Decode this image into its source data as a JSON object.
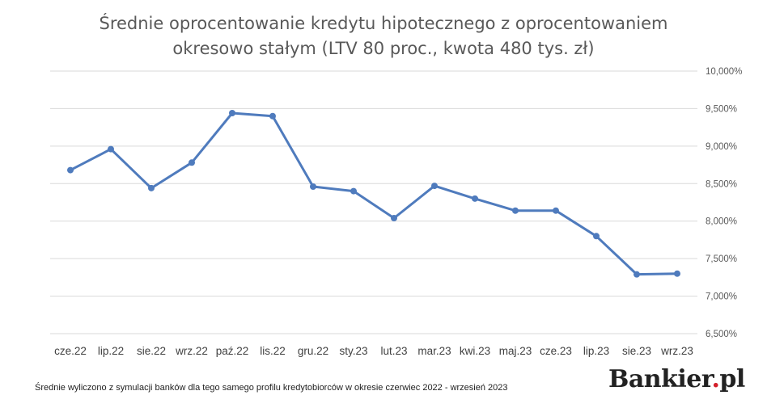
{
  "chart_data": {
    "type": "line",
    "title_line1": "Średnie oprocentowanie kredytu hipotecznego z oprocentowaniem",
    "title_line2": "okresowo stałym (LTV 80 proc., kwota 480 tys. zł)",
    "categories": [
      "cze.22",
      "lip.22",
      "sie.22",
      "wrz.22",
      "paź.22",
      "lis.22",
      "gru.22",
      "sty.23",
      "lut.23",
      "mar.23",
      "kwi.23",
      "maj.23",
      "cze.23",
      "lip.23",
      "sie.23",
      "wrz.23"
    ],
    "series": [
      {
        "values": [
          8.68,
          8.96,
          8.44,
          8.78,
          9.44,
          9.4,
          8.46,
          8.4,
          8.04,
          8.47,
          8.3,
          8.14,
          8.14,
          7.8,
          7.29,
          7.3
        ]
      }
    ],
    "ylim": [
      6.5,
      10.0
    ],
    "yticks": [
      "6,500%",
      "7,000%",
      "7,500%",
      "8,000%",
      "8,500%",
      "9,000%",
      "9,500%",
      "10,000%"
    ],
    "y_axis_side": "right",
    "grid": true,
    "line_color": "#4f7bbd"
  },
  "footnote": "Średnie wyliczono z symulacji banków dla tego samego profilu kredytobiorców w okresie czerwiec 2022 - wrzesień 2023",
  "logo": {
    "text": "Bankier",
    "dot": ".",
    "suffix": "pl"
  }
}
